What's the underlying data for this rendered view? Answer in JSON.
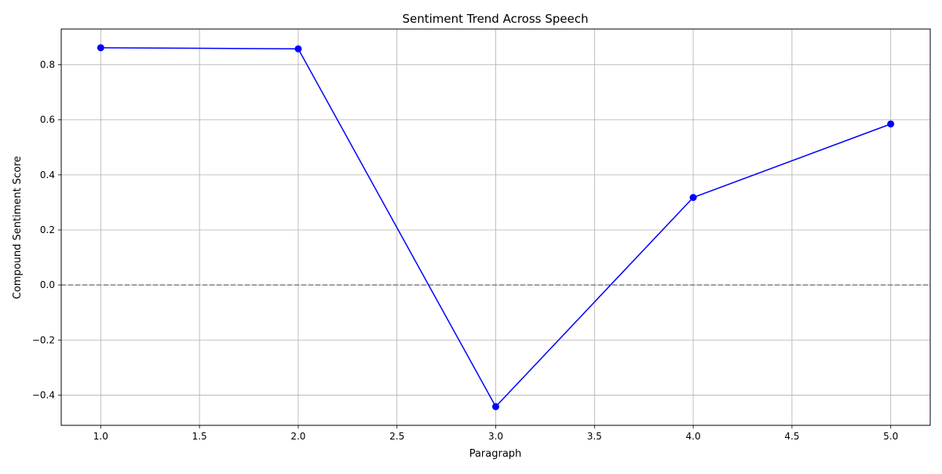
{
  "chart_data": {
    "type": "line",
    "title": "Sentiment Trend Across Speech",
    "xlabel": "Paragraph",
    "ylabel": "Compound Sentiment Score",
    "xlim": [
      0.8,
      5.2
    ],
    "ylim": [
      -0.51,
      0.93
    ],
    "xticks": [
      1.0,
      1.5,
      2.0,
      2.5,
      3.0,
      3.5,
      4.0,
      4.5,
      5.0
    ],
    "xtick_labels": [
      "1.0",
      "1.5",
      "2.0",
      "2.5",
      "3.0",
      "3.5",
      "4.0",
      "4.5",
      "5.0"
    ],
    "yticks": [
      -0.4,
      -0.2,
      0.0,
      0.2,
      0.4,
      0.6,
      0.8
    ],
    "ytick_labels": [
      "−0.4",
      "−0.2",
      "0.0",
      "0.2",
      "0.4",
      "0.6",
      "0.8"
    ],
    "grid": true,
    "reference_line": {
      "y": 0.0,
      "style": "dashed",
      "color": "#808080"
    },
    "series": [
      {
        "x": [
          1,
          2,
          3,
          4,
          5
        ],
        "y": [
          0.862,
          0.858,
          -0.442,
          0.318,
          0.585
        ],
        "color": "#0000ff",
        "marker": "circle"
      }
    ]
  }
}
